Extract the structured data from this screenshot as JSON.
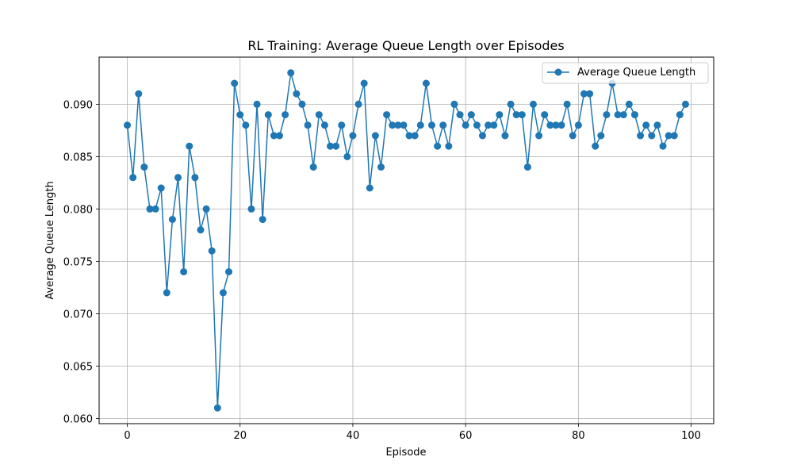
{
  "chart_data": {
    "type": "line",
    "title": "RL Training: Average Queue Length over Episodes",
    "xlabel": "Episode",
    "ylabel": "Average Queue Length",
    "xlim": [
      -5,
      104
    ],
    "ylim": [
      0.0595,
      0.0945
    ],
    "xticks": [
      0,
      20,
      40,
      60,
      80,
      100
    ],
    "xtick_labels": [
      "0",
      "20",
      "40",
      "60",
      "80",
      "100"
    ],
    "yticks": [
      0.06,
      0.065,
      0.07,
      0.075,
      0.08,
      0.085,
      0.09
    ],
    "ytick_labels": [
      "0.060",
      "0.065",
      "0.070",
      "0.075",
      "0.080",
      "0.085",
      "0.090"
    ],
    "grid": true,
    "legend_position": "top-right",
    "series": [
      {
        "name": "Average Queue Length",
        "color": "#1f77b4",
        "marker": "circle",
        "x": [
          0,
          1,
          2,
          3,
          4,
          5,
          6,
          7,
          8,
          9,
          10,
          11,
          12,
          13,
          14,
          15,
          16,
          17,
          18,
          19,
          20,
          21,
          22,
          23,
          24,
          25,
          26,
          27,
          28,
          29,
          30,
          31,
          32,
          33,
          34,
          35,
          36,
          37,
          38,
          39,
          40,
          41,
          42,
          43,
          44,
          45,
          46,
          47,
          48,
          49,
          50,
          51,
          52,
          53,
          54,
          55,
          56,
          57,
          58,
          59,
          60,
          61,
          62,
          63,
          64,
          65,
          66,
          67,
          68,
          69,
          70,
          71,
          72,
          73,
          74,
          75,
          76,
          77,
          78,
          79,
          80,
          81,
          82,
          83,
          84,
          85,
          86,
          87,
          88,
          89,
          90,
          91,
          92,
          93,
          94,
          95,
          96,
          97,
          98,
          99
        ],
        "values": [
          0.088,
          0.083,
          0.091,
          0.084,
          0.08,
          0.08,
          0.082,
          0.072,
          0.079,
          0.083,
          0.074,
          0.086,
          0.083,
          0.078,
          0.08,
          0.076,
          0.061,
          0.072,
          0.074,
          0.092,
          0.089,
          0.088,
          0.08,
          0.09,
          0.079,
          0.089,
          0.087,
          0.087,
          0.089,
          0.093,
          0.091,
          0.09,
          0.088,
          0.084,
          0.089,
          0.088,
          0.086,
          0.086,
          0.088,
          0.085,
          0.087,
          0.09,
          0.092,
          0.082,
          0.087,
          0.084,
          0.089,
          0.088,
          0.088,
          0.088,
          0.087,
          0.087,
          0.088,
          0.092,
          0.088,
          0.086,
          0.088,
          0.086,
          0.09,
          0.089,
          0.088,
          0.089,
          0.088,
          0.087,
          0.088,
          0.088,
          0.089,
          0.087,
          0.09,
          0.089,
          0.089,
          0.084,
          0.09,
          0.087,
          0.089,
          0.088,
          0.088,
          0.088,
          0.09,
          0.087,
          0.088,
          0.091,
          0.091,
          0.086,
          0.087,
          0.089,
          0.092,
          0.089,
          0.089,
          0.09,
          0.089,
          0.087,
          0.088,
          0.087,
          0.088,
          0.086,
          0.087,
          0.087,
          0.089,
          0.09
        ]
      }
    ]
  }
}
